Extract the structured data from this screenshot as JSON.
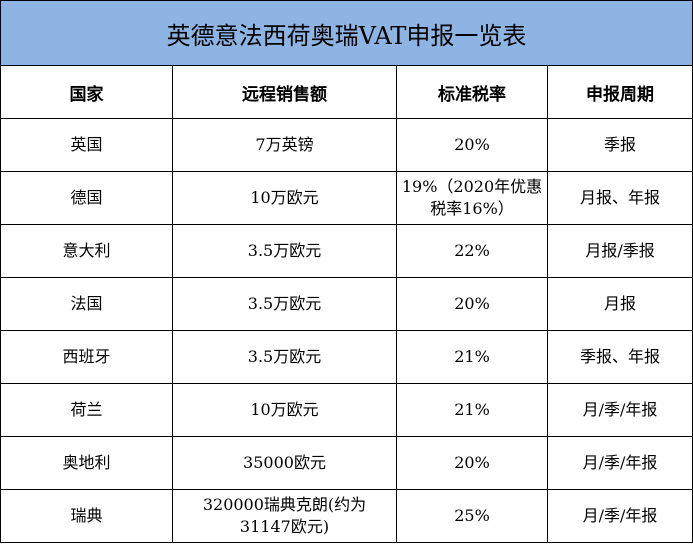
{
  "title": "英德意法西荷奥瑞VAT申报一览表",
  "headers": [
    "国家",
    "远程销售额",
    "标准税率",
    "申报周期"
  ],
  "rows": [
    [
      "英国",
      "7万英镑",
      "20%",
      "季报"
    ],
    [
      "德国",
      "10万欧元",
      "19%（2020年优惠税率16%）",
      "月报、年报"
    ],
    [
      "意大利",
      "3.5万欧元",
      "22%",
      "月报/季报"
    ],
    [
      "法国",
      "3.5万欧元",
      "20%",
      "月报"
    ],
    [
      "西班牙",
      "3.5万欧元",
      "21%",
      "季报、年报"
    ],
    [
      "荷兰",
      "10万欧元",
      "21%",
      "月/季/年报"
    ],
    [
      "奥地利",
      "35000欧元",
      "20%",
      "月/季/年报"
    ],
    [
      "瑞典",
      "320000瑞典克朗(约为31147欧元)",
      "25%",
      "月/季/年报"
    ]
  ]
}
